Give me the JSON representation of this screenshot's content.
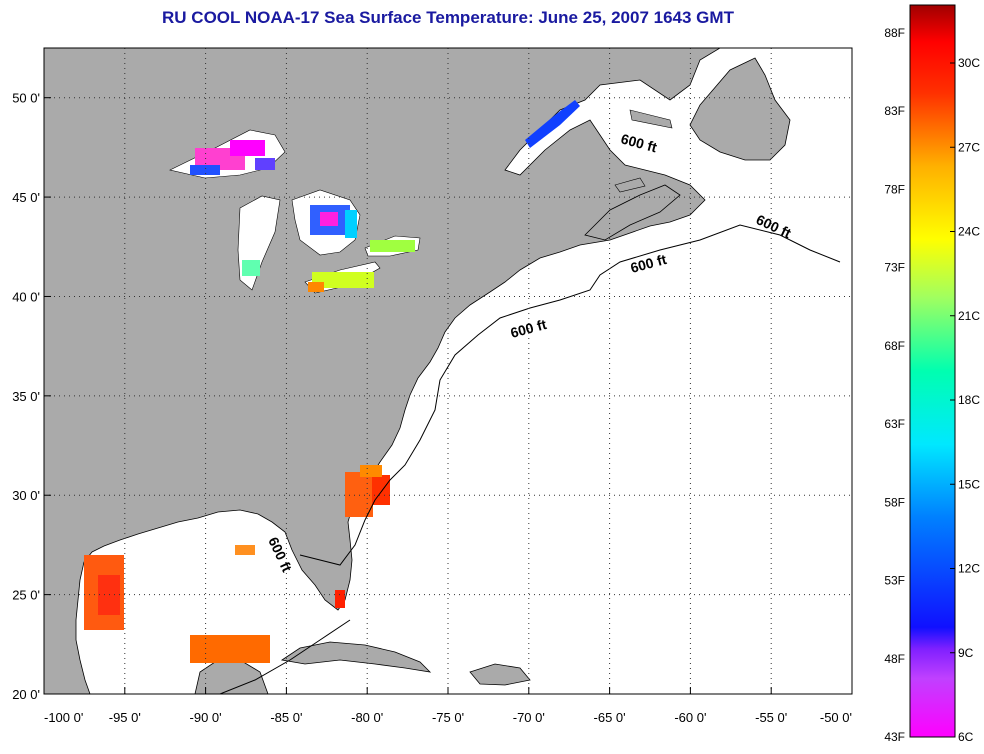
{
  "title": "RU COOL  NOAA-17  Sea Surface Temperature:  June 25, 2007 1643 GMT",
  "map": {
    "lon_range": [
      -100,
      -50
    ],
    "lat_range": [
      20,
      52.5
    ],
    "lon_ticks": [
      "-100 0'",
      "-95 0'",
      "-90 0'",
      "-85 0'",
      "-80 0'",
      "-75 0'",
      "-70 0'",
      "-65 0'",
      "-60 0'",
      "-55 0'",
      "-50 0'"
    ],
    "lat_ticks": [
      "20 0'",
      "25 0'",
      "30 0'",
      "35 0'",
      "40 0'",
      "45 0'",
      "50 0'"
    ],
    "contour_labels": [
      "600 ft",
      "600 ft",
      "600 ft",
      "600 ft",
      "600 ft"
    ],
    "colors": {
      "land": "#aaaaaa",
      "ocean": "#ffffff",
      "title": "#1a1aa0"
    },
    "grid": true
  },
  "colorbar": {
    "fahrenheit_labels": [
      "88F",
      "83F",
      "78F",
      "73F",
      "68F",
      "63F",
      "58F",
      "53F",
      "48F",
      "43F"
    ],
    "celsius_labels": [
      "30C",
      "27C",
      "24C",
      "21C",
      "18C",
      "15C",
      "12C",
      "9C",
      "6C"
    ],
    "range_c": [
      6,
      32
    ]
  }
}
